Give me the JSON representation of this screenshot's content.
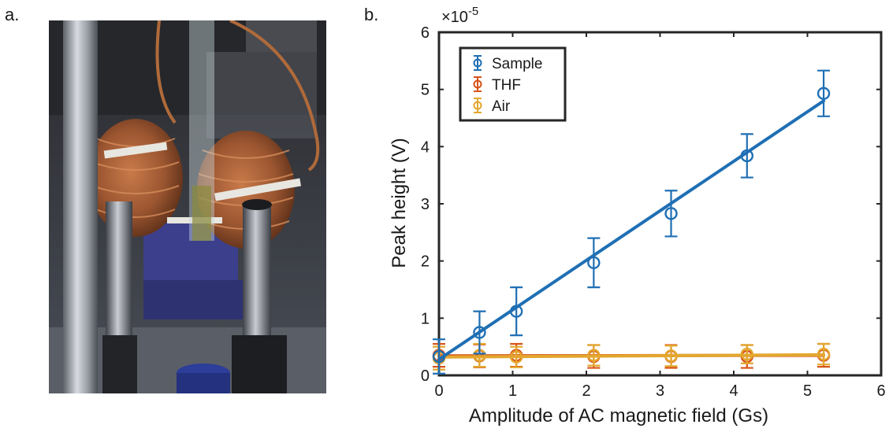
{
  "panels": {
    "a_label": "a.",
    "b_label": "b."
  },
  "photo": {
    "description_icon": "magnetic-coil-setup-photo"
  },
  "chart_data": {
    "type": "scatter",
    "xlabel": "Amplitude of AC magnetic field (Gs)",
    "ylabel": "Peak height (V)",
    "y_multiplier": "×10",
    "y_exponent": "-5",
    "xlim": [
      0,
      6
    ],
    "ylim": [
      0,
      6
    ],
    "xticks": [
      "0",
      "1",
      "2",
      "3",
      "4",
      "5",
      "6"
    ],
    "yticks": [
      "0",
      "1",
      "2",
      "3",
      "4",
      "5",
      "6"
    ],
    "grid": false,
    "legend_position": "top-left",
    "series": [
      {
        "name": "Sample",
        "color": "#1f6fb4",
        "x": [
          0,
          0.55,
          1.05,
          2.1,
          3.15,
          4.18,
          5.22
        ],
        "y": [
          0.33,
          0.75,
          1.12,
          1.97,
          2.83,
          3.84,
          4.93
        ],
        "err": [
          0.3,
          0.37,
          0.42,
          0.43,
          0.4,
          0.38,
          0.4
        ],
        "fit": [
          [
            0,
            0.28
          ],
          [
            5.22,
            4.8
          ]
        ]
      },
      {
        "name": "THF",
        "color": "#d95319",
        "x": [
          0,
          0.55,
          1.05,
          2.1,
          3.15,
          4.18,
          5.22
        ],
        "y": [
          0.35,
          0.34,
          0.35,
          0.33,
          0.33,
          0.33,
          0.35
        ],
        "err": [
          0.2,
          0.2,
          0.2,
          0.2,
          0.2,
          0.2,
          0.2
        ],
        "fit": [
          [
            0,
            0.34
          ],
          [
            5.22,
            0.35
          ]
        ]
      },
      {
        "name": "Air",
        "color": "#e3a72f",
        "x": [
          0,
          0.55,
          1.05,
          2.1,
          3.15,
          4.18,
          5.22
        ],
        "y": [
          0.3,
          0.35,
          0.32,
          0.35,
          0.34,
          0.37,
          0.37
        ],
        "err": [
          0.2,
          0.2,
          0.18,
          0.18,
          0.18,
          0.16,
          0.18
        ],
        "fit": [
          [
            0,
            0.32
          ],
          [
            5.22,
            0.36
          ]
        ]
      }
    ]
  }
}
